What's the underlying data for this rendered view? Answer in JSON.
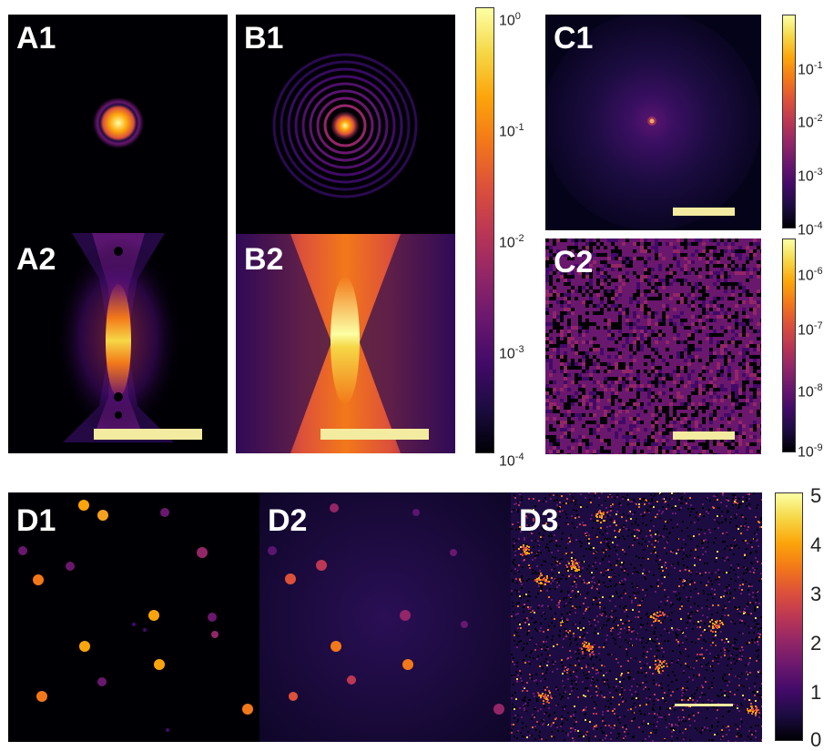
{
  "colormap": {
    "stops": [
      "#000004",
      "#1c0c41",
      "#420a68",
      "#6a176e",
      "#932667",
      "#bc3754",
      "#dd513a",
      "#f37819",
      "#fca50a",
      "#f6d746",
      "#fcffa4"
    ]
  },
  "scalebar_color": "#f3eba0",
  "panels": {
    "A1": {
      "label": "A1"
    },
    "A2": {
      "label": "A2"
    },
    "B1": {
      "label": "B1"
    },
    "B2": {
      "label": "B2"
    },
    "C1": {
      "label": "C1"
    },
    "C2": {
      "label": "C2"
    },
    "D1": {
      "label": "D1"
    },
    "D2": {
      "label": "D2"
    },
    "D3": {
      "label": "D3"
    }
  },
  "colorbars": {
    "AB": {
      "scale": "log",
      "ticks": [
        {
          "base": "10",
          "exp": "0"
        },
        {
          "base": "10",
          "exp": "-1"
        },
        {
          "base": "10",
          "exp": "-2"
        },
        {
          "base": "10",
          "exp": "-3"
        },
        {
          "base": "10",
          "exp": "-4"
        }
      ]
    },
    "C1": {
      "scale": "log",
      "ticks": [
        {
          "base": "10",
          "exp": "-1"
        },
        {
          "base": "10",
          "exp": "-2"
        },
        {
          "base": "10",
          "exp": "-3"
        },
        {
          "base": "10",
          "exp": "-4"
        }
      ]
    },
    "C2": {
      "scale": "log",
      "ticks": [
        {
          "base": "10",
          "exp": "-6"
        },
        {
          "base": "10",
          "exp": "-7"
        },
        {
          "base": "10",
          "exp": "-8"
        },
        {
          "base": "10",
          "exp": "-9"
        }
      ]
    },
    "D": {
      "scale": "linear",
      "ticks": [
        "5",
        "4",
        "3",
        "2",
        "1",
        "0"
      ]
    }
  }
}
